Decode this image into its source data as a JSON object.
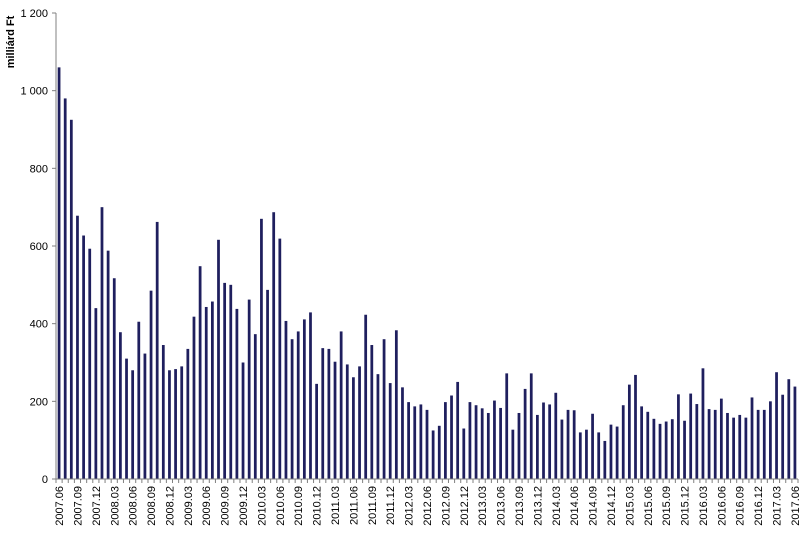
{
  "chart_data": {
    "type": "bar",
    "title": "",
    "xlabel": "",
    "ylabel": "milliárd Ft",
    "ylim": [
      0,
      1200
    ],
    "yticks": [
      0,
      200,
      400,
      600,
      800,
      1000,
      1200
    ],
    "ytick_labels": [
      "0",
      "200",
      "400",
      "600",
      "800",
      "1 000",
      "1 200"
    ],
    "grid": false,
    "legend": "none",
    "bar_color": "#1f1f5e",
    "xtick_labels": [
      "2007.06",
      "2007.09",
      "2007.12",
      "2008.03",
      "2008.06",
      "2008.09",
      "2008.12",
      "2009.03",
      "2009.06",
      "2009.09",
      "2009.12",
      "2010.03",
      "2010.06",
      "2010.09",
      "2010.12",
      "2011.03",
      "2011.06",
      "2011.09",
      "2011.12",
      "2012.03",
      "2012.06",
      "2012.09",
      "2012.12",
      "2013.03",
      "2013.06",
      "2013.09",
      "2013.12",
      "2014.03",
      "2014.06",
      "2014.09",
      "2014.12",
      "2015.03",
      "2015.06",
      "2015.09",
      "2015.12",
      "2016.03",
      "2016.06",
      "2016.09",
      "2016.12",
      "2017.03",
      "2017.06"
    ],
    "categories": [
      "2007.06",
      "2007.07",
      "2007.08",
      "2007.09",
      "2007.10",
      "2007.11",
      "2007.12",
      "2008.01",
      "2008.02",
      "2008.03",
      "2008.04",
      "2008.05",
      "2008.06",
      "2008.07",
      "2008.08",
      "2008.09",
      "2008.10",
      "2008.11",
      "2008.12",
      "2009.01",
      "2009.02",
      "2009.03",
      "2009.04",
      "2009.05",
      "2009.06",
      "2009.07",
      "2009.08",
      "2009.09",
      "2009.10",
      "2009.11",
      "2009.12",
      "2010.01",
      "2010.02",
      "2010.03",
      "2010.04",
      "2010.05",
      "2010.06",
      "2010.07",
      "2010.08",
      "2010.09",
      "2010.10",
      "2010.11",
      "2010.12",
      "2011.01",
      "2011.02",
      "2011.03",
      "2011.04",
      "2011.05",
      "2011.06",
      "2011.07",
      "2011.08",
      "2011.09",
      "2011.10",
      "2011.11",
      "2011.12",
      "2012.01",
      "2012.02",
      "2012.03",
      "2012.04",
      "2012.05",
      "2012.06",
      "2012.07",
      "2012.08",
      "2012.09",
      "2012.10",
      "2012.11",
      "2012.12",
      "2013.01",
      "2013.02",
      "2013.03",
      "2013.04",
      "2013.05",
      "2013.06",
      "2013.07",
      "2013.08",
      "2013.09",
      "2013.10",
      "2013.11",
      "2013.12",
      "2014.01",
      "2014.02",
      "2014.03",
      "2014.04",
      "2014.05",
      "2014.06",
      "2014.07",
      "2014.08",
      "2014.09",
      "2014.10",
      "2014.11",
      "2014.12",
      "2015.01",
      "2015.02",
      "2015.03",
      "2015.04",
      "2015.05",
      "2015.06",
      "2015.07",
      "2015.08",
      "2015.09",
      "2015.10",
      "2015.11",
      "2015.12",
      "2016.01",
      "2016.02",
      "2016.03",
      "2016.04",
      "2016.05",
      "2016.06",
      "2016.07",
      "2016.08",
      "2016.09",
      "2016.10",
      "2016.11",
      "2016.12",
      "2017.01",
      "2017.02",
      "2017.03",
      "2017.04",
      "2017.05",
      "2017.06"
    ],
    "values": [
      1060,
      980,
      925,
      678,
      627,
      593,
      440,
      700,
      588,
      517,
      378,
      310,
      280,
      405,
      323,
      485,
      662,
      345,
      280,
      283,
      290,
      335,
      418,
      548,
      443,
      457,
      616,
      505,
      500,
      438,
      300,
      462,
      373,
      670,
      487,
      687,
      619,
      407,
      360,
      380,
      411,
      429,
      245,
      337,
      335,
      302,
      380,
      295,
      262,
      290,
      423,
      345,
      270,
      360,
      247,
      383,
      236,
      198,
      187,
      192,
      178,
      125,
      137,
      198,
      215,
      250,
      130,
      198,
      190,
      182,
      170,
      202,
      183,
      272,
      127,
      170,
      232,
      272,
      165,
      197,
      192,
      222,
      153,
      178,
      177,
      120,
      127,
      168,
      120,
      98,
      140,
      135,
      190,
      243,
      268,
      187,
      173,
      155,
      142,
      148,
      154,
      218,
      150,
      220,
      193,
      285,
      180,
      178,
      207,
      170,
      158,
      165,
      158,
      210,
      178,
      178,
      200,
      275,
      217,
      257,
      238
    ]
  }
}
